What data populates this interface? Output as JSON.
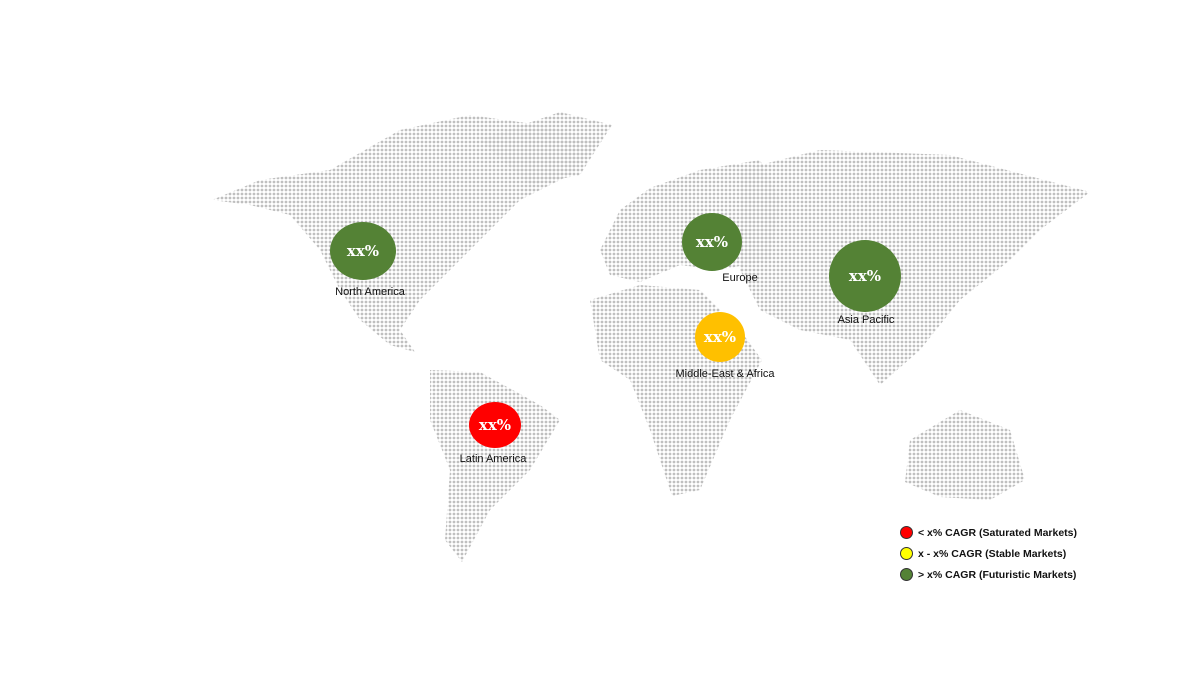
{
  "colors": {
    "futuristic": "#548235",
    "stable": "#ffc000",
    "saturated": "#ff0000",
    "map_dots": "#bfbfbf",
    "legend_stable": "#ffff00"
  },
  "regions": [
    {
      "name": "North America",
      "value": "xx%",
      "category": "futuristic"
    },
    {
      "name": "Europe",
      "value": "xx%",
      "category": "futuristic"
    },
    {
      "name": "Asia Pacific",
      "value": "xx%",
      "category": "futuristic"
    },
    {
      "name": "Middle-East & Africa",
      "value": "xx%",
      "category": "stable"
    },
    {
      "name": "Latin America",
      "value": "xx%",
      "category": "saturated"
    }
  ],
  "legend": [
    {
      "label": "< x% CAGR (Saturated Markets)",
      "color": "#ff0000"
    },
    {
      "label": "x - x% CAGR (Stable Markets)",
      "color": "#ffff00"
    },
    {
      "label": "> x% CAGR (Futuristic Markets)",
      "color": "#548235"
    }
  ]
}
